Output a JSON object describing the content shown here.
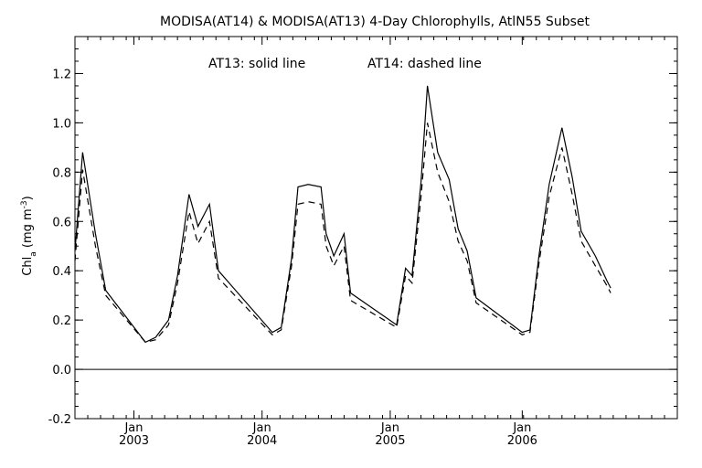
{
  "chart_data": {
    "type": "line",
    "title": "MODISA(AT14) & MODISA(AT13) 4-Day Chlorophylls, AtlN55 Subset",
    "annotation": {
      "left": "AT13: solid line",
      "right": "AT14: dashed line"
    },
    "ylabel": {
      "main": "Chl",
      "sub": "a",
      "unit_open": " (mg m",
      "unit_sup": "-3",
      "unit_close": ")"
    },
    "xlim": [
      0,
      47
    ],
    "ylim": [
      -0.2,
      1.35
    ],
    "yticks": [
      -0.2,
      0.0,
      0.2,
      0.4,
      0.6,
      0.8,
      1.0,
      1.2
    ],
    "ytick_labels": [
      "-0.2",
      "0.0",
      "0.2",
      "0.4",
      "0.6",
      "0.8",
      "1.0",
      "1.2"
    ],
    "xticks": [
      {
        "x": 4.6,
        "month": "Jan",
        "year": "2003"
      },
      {
        "x": 14.6,
        "month": "Jan",
        "year": "2004"
      },
      {
        "x": 24.6,
        "month": "Jan",
        "year": "2005"
      },
      {
        "x": 34.9,
        "month": "Jan",
        "year": "2006"
      }
    ],
    "reference_line": 0.0,
    "series": [
      {
        "name": "AT13",
        "style": "solid",
        "color": "#000000",
        "points": [
          [
            0.0,
            0.48
          ],
          [
            0.6,
            0.88
          ],
          [
            1.6,
            0.55
          ],
          [
            2.4,
            0.32
          ],
          [
            5.5,
            0.11
          ],
          [
            6.3,
            0.13
          ],
          [
            7.3,
            0.2
          ],
          [
            8.0,
            0.38
          ],
          [
            8.9,
            0.71
          ],
          [
            9.6,
            0.58
          ],
          [
            10.5,
            0.67
          ],
          [
            11.2,
            0.4
          ],
          [
            15.4,
            0.15
          ],
          [
            16.1,
            0.17
          ],
          [
            16.9,
            0.45
          ],
          [
            17.4,
            0.74
          ],
          [
            18.2,
            0.75
          ],
          [
            19.2,
            0.74
          ],
          [
            19.6,
            0.55
          ],
          [
            20.2,
            0.46
          ],
          [
            21.0,
            0.55
          ],
          [
            21.5,
            0.31
          ],
          [
            25.1,
            0.18
          ],
          [
            25.8,
            0.41
          ],
          [
            26.3,
            0.38
          ],
          [
            27.0,
            0.76
          ],
          [
            27.5,
            1.15
          ],
          [
            28.3,
            0.88
          ],
          [
            29.2,
            0.77
          ],
          [
            29.9,
            0.57
          ],
          [
            30.6,
            0.48
          ],
          [
            31.3,
            0.29
          ],
          [
            34.9,
            0.15
          ],
          [
            35.5,
            0.16
          ],
          [
            36.2,
            0.46
          ],
          [
            37.0,
            0.75
          ],
          [
            38.0,
            0.98
          ],
          [
            38.8,
            0.78
          ],
          [
            39.5,
            0.56
          ],
          [
            40.6,
            0.46
          ],
          [
            41.5,
            0.36
          ],
          [
            41.8,
            0.33
          ]
        ]
      },
      {
        "name": "AT14",
        "style": "dashed",
        "color": "#000000",
        "points": [
          [
            0.0,
            0.44
          ],
          [
            0.6,
            0.81
          ],
          [
            1.6,
            0.5
          ],
          [
            2.4,
            0.3
          ],
          [
            5.5,
            0.11
          ],
          [
            6.3,
            0.12
          ],
          [
            7.3,
            0.18
          ],
          [
            8.0,
            0.35
          ],
          [
            8.9,
            0.64
          ],
          [
            9.6,
            0.51
          ],
          [
            10.5,
            0.6
          ],
          [
            11.2,
            0.37
          ],
          [
            15.4,
            0.14
          ],
          [
            16.1,
            0.16
          ],
          [
            16.9,
            0.42
          ],
          [
            17.4,
            0.67
          ],
          [
            18.2,
            0.68
          ],
          [
            19.2,
            0.67
          ],
          [
            19.6,
            0.5
          ],
          [
            20.2,
            0.42
          ],
          [
            21.0,
            0.5
          ],
          [
            21.5,
            0.28
          ],
          [
            25.1,
            0.17
          ],
          [
            25.8,
            0.38
          ],
          [
            26.3,
            0.35
          ],
          [
            27.0,
            0.7
          ],
          [
            27.5,
            1.0
          ],
          [
            28.3,
            0.8
          ],
          [
            29.2,
            0.68
          ],
          [
            29.9,
            0.52
          ],
          [
            30.6,
            0.44
          ],
          [
            31.3,
            0.27
          ],
          [
            34.9,
            0.14
          ],
          [
            35.5,
            0.15
          ],
          [
            36.2,
            0.43
          ],
          [
            37.0,
            0.7
          ],
          [
            38.0,
            0.9
          ],
          [
            38.8,
            0.71
          ],
          [
            39.5,
            0.52
          ],
          [
            40.6,
            0.42
          ],
          [
            41.5,
            0.34
          ],
          [
            41.8,
            0.31
          ]
        ]
      }
    ]
  }
}
